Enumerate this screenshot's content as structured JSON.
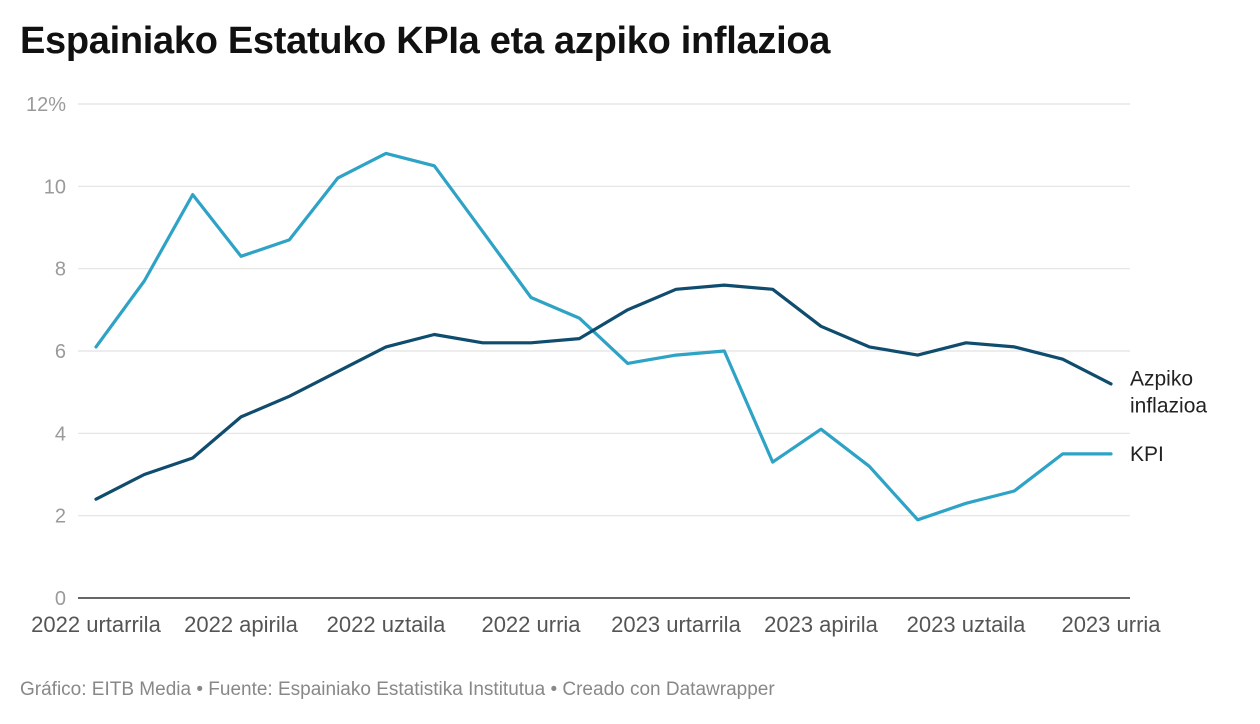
{
  "title": "Espainiako Estatuko KPIa eta azpiko inflazioa",
  "footer": "Gráfico: EITB Media • Fuente: Espainiako Estatistika Institutua • Creado con Datawrapper",
  "chart_data": {
    "type": "line",
    "title": "Espainiako Estatuko KPIa eta azpiko inflazioa",
    "xlabel": "",
    "ylabel": "",
    "ylim": [
      0,
      12
    ],
    "yticks": [
      {
        "value": 0,
        "label": "0"
      },
      {
        "value": 2,
        "label": "2"
      },
      {
        "value": 4,
        "label": "4"
      },
      {
        "value": 6,
        "label": "6"
      },
      {
        "value": 8,
        "label": "8"
      },
      {
        "value": 10,
        "label": "10"
      },
      {
        "value": 12,
        "label": "12%"
      }
    ],
    "grid": true,
    "x_count": 22,
    "xticks": [
      {
        "index": 0,
        "label": "2022 urtarrila"
      },
      {
        "index": 3,
        "label": "2022 apirila"
      },
      {
        "index": 6,
        "label": "2022 uztaila"
      },
      {
        "index": 9,
        "label": "2022 urria"
      },
      {
        "index": 12,
        "label": "2023 urtarrila"
      },
      {
        "index": 15,
        "label": "2023 apirila"
      },
      {
        "index": 18,
        "label": "2023 uztaila"
      },
      {
        "index": 21,
        "label": "2023 urria"
      }
    ],
    "series": [
      {
        "name": "KPI",
        "label_lines": [
          "KPI"
        ],
        "color": "#2ea3c6",
        "values": [
          6.1,
          7.7,
          9.8,
          8.3,
          8.7,
          10.2,
          10.8,
          10.5,
          8.9,
          7.3,
          6.8,
          5.7,
          5.9,
          6.0,
          3.3,
          4.1,
          3.2,
          1.9,
          2.3,
          2.6,
          3.5,
          3.5
        ]
      },
      {
        "name": "Azpiko inflazioa",
        "label_lines": [
          "Azpiko",
          "inflazioa"
        ],
        "color": "#0f4c6e",
        "values": [
          2.4,
          3.0,
          3.4,
          4.4,
          4.9,
          5.5,
          6.1,
          6.4,
          6.2,
          6.2,
          6.3,
          7.0,
          7.5,
          7.6,
          7.5,
          6.6,
          6.1,
          5.9,
          6.2,
          6.1,
          5.8,
          5.2
        ]
      }
    ]
  }
}
